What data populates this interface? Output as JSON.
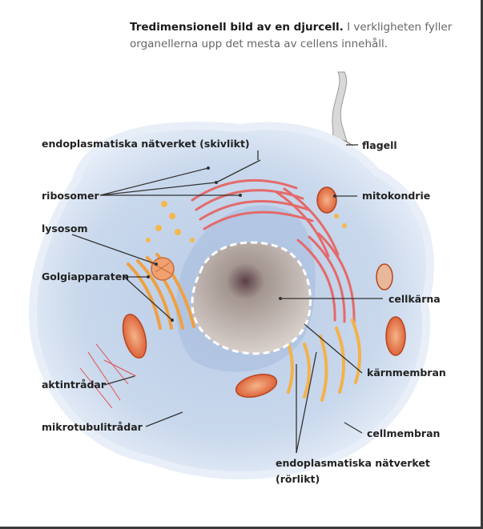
{
  "caption": {
    "title": "Tredimensionell bild av en djurcell.",
    "text": "I verkligheten fyller organellerna upp det mesta av cellens innehåll."
  },
  "labels": {
    "er_smooth_title": "endoplasmatiska nätverket (skivlikt)",
    "ribosomer": "ribosomer",
    "lysosom": "lysosom",
    "golgi": "Golgiapparaten",
    "aktintradar": "aktintrådar",
    "mikrotubulitradar": "mikrotubulitrådar",
    "flagell": "flagell",
    "mitokondrie": "mitokondrie",
    "cellkarna": "cellkärna",
    "karnmembran": "kärnmembran",
    "cellmembran": "cellmembran",
    "er_rough_line1": "endoplasmatiska nätverket",
    "er_rough_line2": "(rörlikt)"
  },
  "colors": {
    "cytoplasm": "#c9d8ec",
    "membrane": "#dfe8f4",
    "nucleus": "#b9aea8",
    "er": "#e46a6a",
    "golgi": "#f0a040",
    "mito": "#e26a3a"
  }
}
